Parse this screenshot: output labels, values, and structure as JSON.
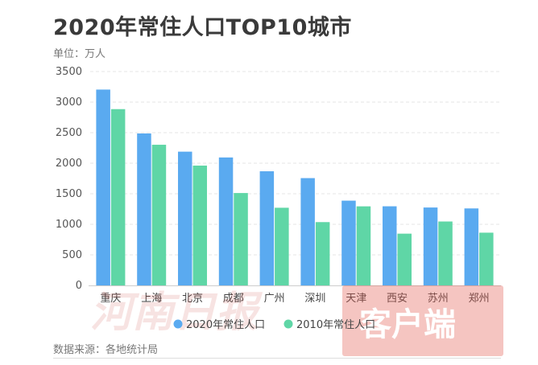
{
  "title": "2020年常住人口TOP10城市",
  "unit_label": "单位：万人",
  "source_label": "数据来源：各地统计局",
  "watermark": {
    "text": "河南日报",
    "badge": "客户端"
  },
  "colors": {
    "series_2020": "#5aaaf0",
    "series_2010": "#5fd6a6",
    "badge_bg": "#e25a4e"
  },
  "chart_data": {
    "type": "bar",
    "categories": [
      "重庆",
      "上海",
      "北京",
      "成都",
      "广州",
      "深圳",
      "天津",
      "西安",
      "苏州",
      "郑州"
    ],
    "series": [
      {
        "name": "2020年常住人口",
        "values": [
          3205,
          2487,
          2189,
          2094,
          1868,
          1756,
          1387,
          1295,
          1275,
          1260
        ]
      },
      {
        "name": "2010年常住人口",
        "values": [
          2885,
          2302,
          1961,
          1512,
          1271,
          1036,
          1294,
          847,
          1046,
          863
        ]
      }
    ],
    "ylim": [
      0,
      3500
    ],
    "yticks": [
      0,
      500,
      1000,
      1500,
      2000,
      2500,
      3000,
      3500
    ],
    "grid": true,
    "legend_position": "bottom"
  }
}
